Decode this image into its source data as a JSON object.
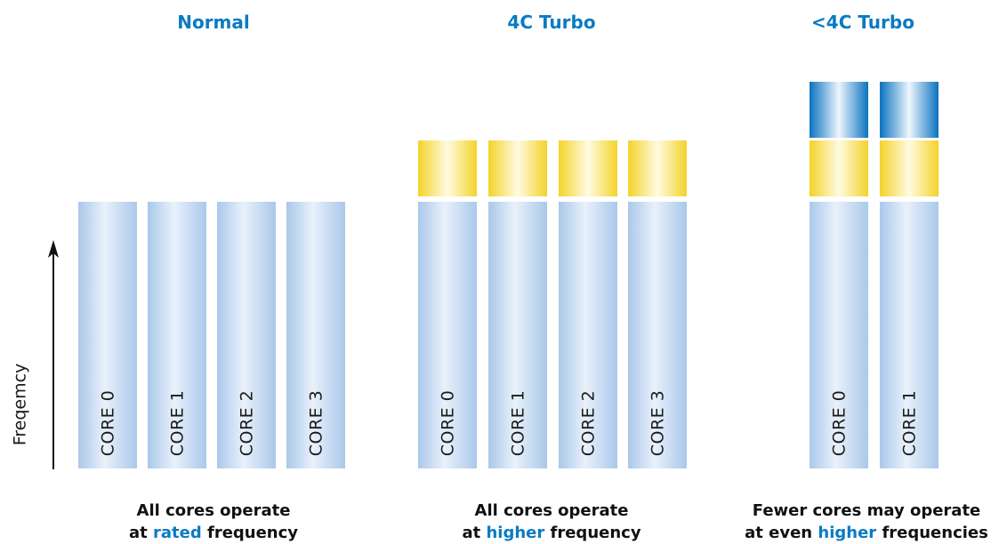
{
  "groups": [
    {
      "title": "Normal",
      "cores": [
        "CORE 0",
        "CORE 1",
        "CORE 2",
        "CORE 3"
      ],
      "turbo_levels": 0,
      "caption": {
        "line1": "All cores operate",
        "line2_pre": "at ",
        "line2_highlight": "rated",
        "line2_post": " frequency"
      }
    },
    {
      "title": "4C Turbo",
      "cores": [
        "CORE 0",
        "CORE 1",
        "CORE 2",
        "CORE 3"
      ],
      "turbo_levels": 1,
      "caption": {
        "line1": "All cores operate",
        "line2_pre": "at ",
        "line2_highlight": "higher",
        "line2_post": " frequency"
      }
    },
    {
      "title": "<4C Turbo",
      "cores": [
        "CORE 0",
        "CORE 1"
      ],
      "turbo_levels": 2,
      "caption": {
        "line1": "Fewer cores may operate",
        "line2_pre": "at even ",
        "line2_highlight": "higher",
        "line2_post": " frequencies"
      }
    }
  ],
  "axis": {
    "label": "Freqemcy"
  },
  "colors": {
    "title": "#0a7bc2",
    "highlight": "#0a7bc2",
    "base_core": "#aac8ea",
    "turbo_core": "#f3d32b",
    "turbo2_core": "#0a73bf"
  }
}
